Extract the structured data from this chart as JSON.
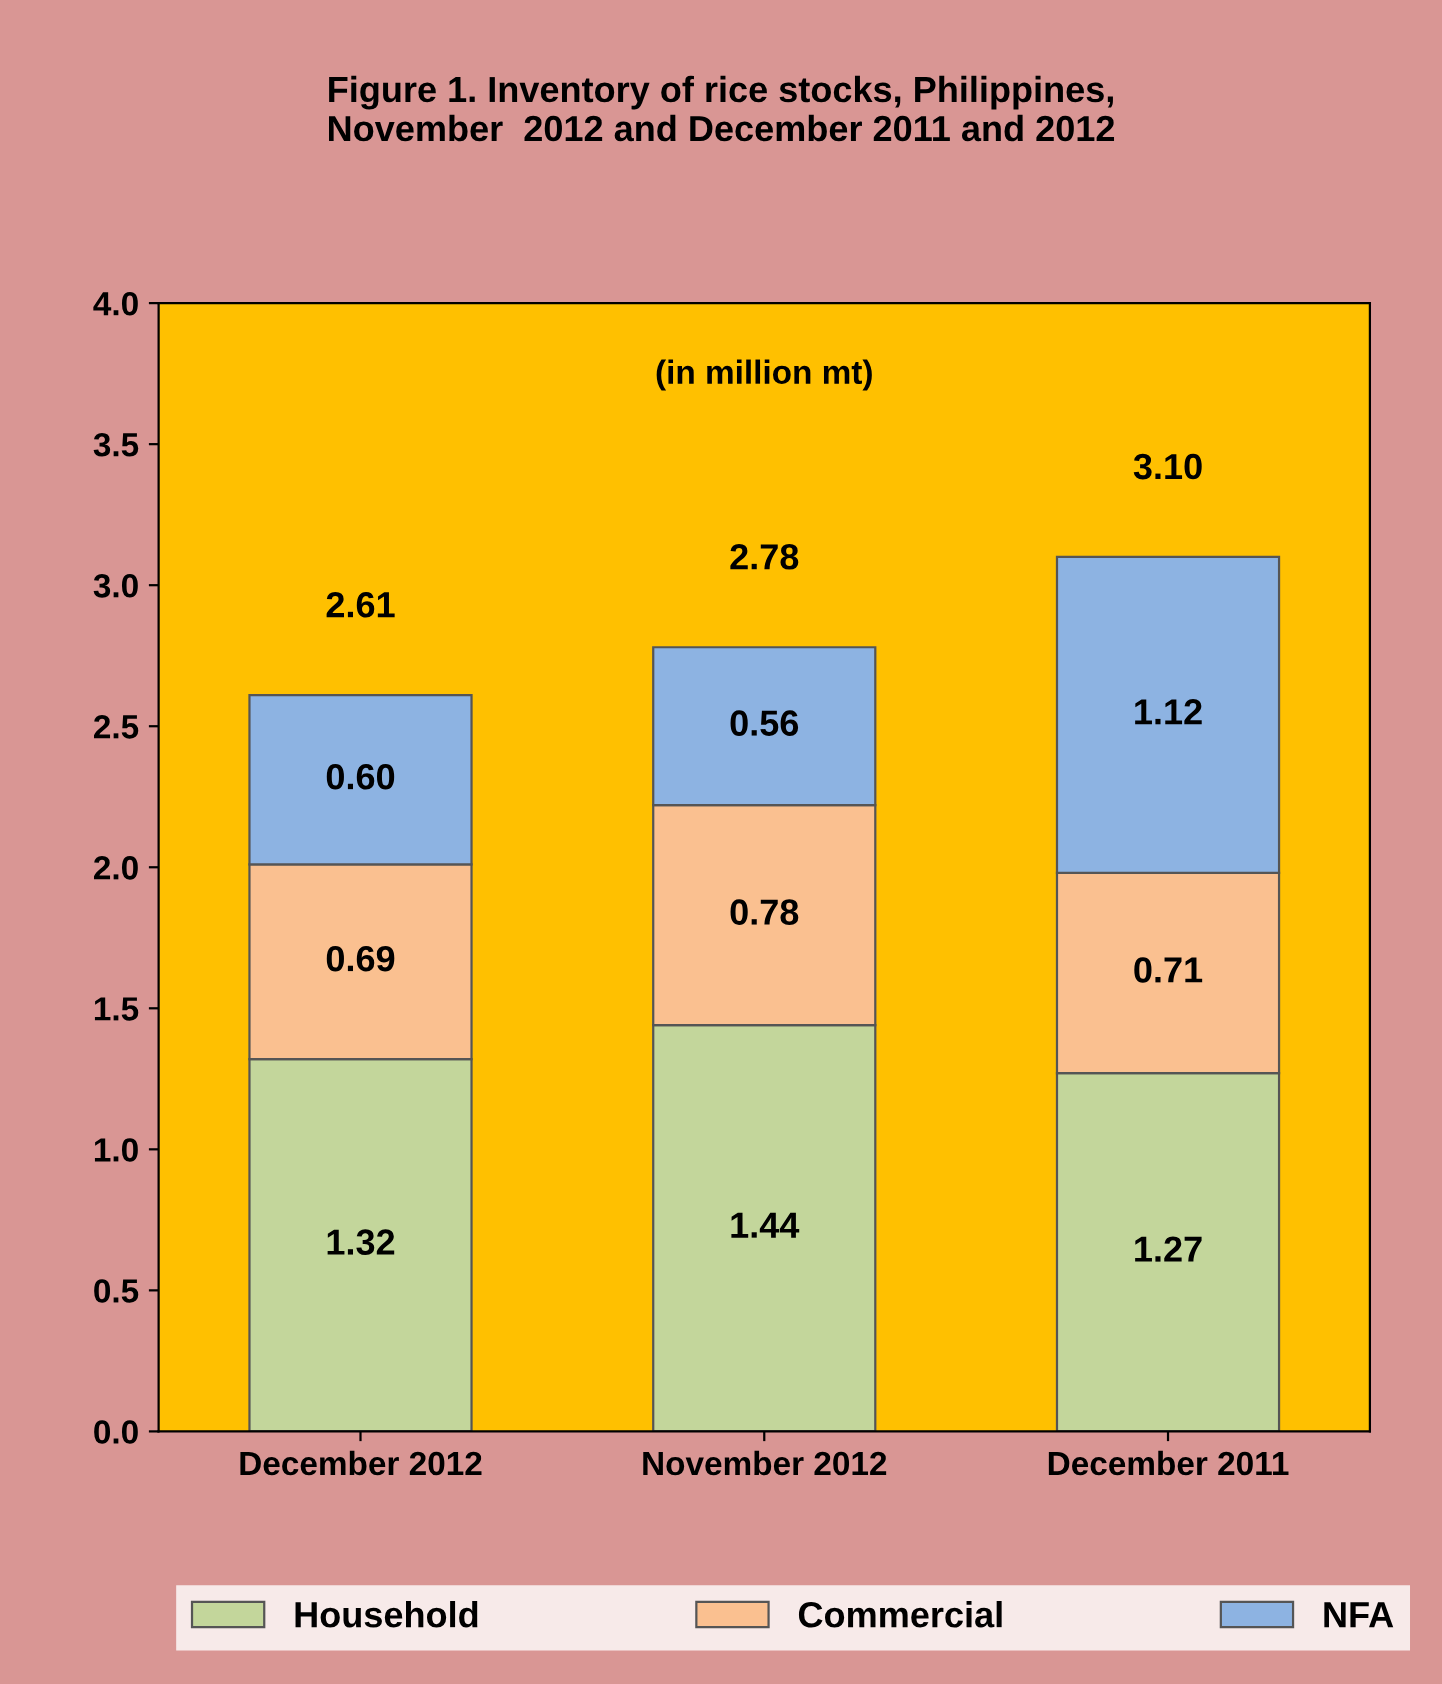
{
  "chart_data": {
    "type": "bar",
    "title": "Figure 1. Inventory of rice stocks, Philippines,\nNovember  2012 and December 2011 and 2012",
    "annotations": [
      "(in million mt)"
    ],
    "categories": [
      "December 2012",
      "November 2012",
      "December 2011"
    ],
    "stacked": true,
    "series": [
      {
        "name": "Household",
        "color": "#c3d69b",
        "values": [
          1.32,
          1.44,
          1.27
        ],
        "value_labels": [
          "1.32",
          "1.44",
          "1.27"
        ]
      },
      {
        "name": "Commercial",
        "color": "#fac090",
        "values": [
          0.69,
          0.78,
          0.71
        ],
        "value_labels": [
          "0.69",
          "0.78",
          "0.71"
        ]
      },
      {
        "name": "NFA",
        "color": "#8db3e2",
        "values": [
          0.6,
          0.56,
          1.12
        ],
        "value_labels": [
          "0.60",
          "0.56",
          "1.12"
        ]
      }
    ],
    "totals": [
      "2.61",
      "2.78",
      "3.10"
    ],
    "ylim": [
      0,
      4
    ],
    "yticks": [
      {
        "value": 0,
        "label": "0.0"
      },
      {
        "value": 0.5,
        "label": "0.5"
      },
      {
        "value": 1,
        "label": "1.0"
      },
      {
        "value": 1.5,
        "label": "1.5"
      },
      {
        "value": 2,
        "label": "2.0"
      },
      {
        "value": 2.5,
        "label": "2.5"
      },
      {
        "value": 3,
        "label": "3.0"
      },
      {
        "value": 3.5,
        "label": "3.5"
      },
      {
        "value": 4,
        "label": "4.0"
      }
    ],
    "grid": false,
    "legend": "bottom"
  }
}
